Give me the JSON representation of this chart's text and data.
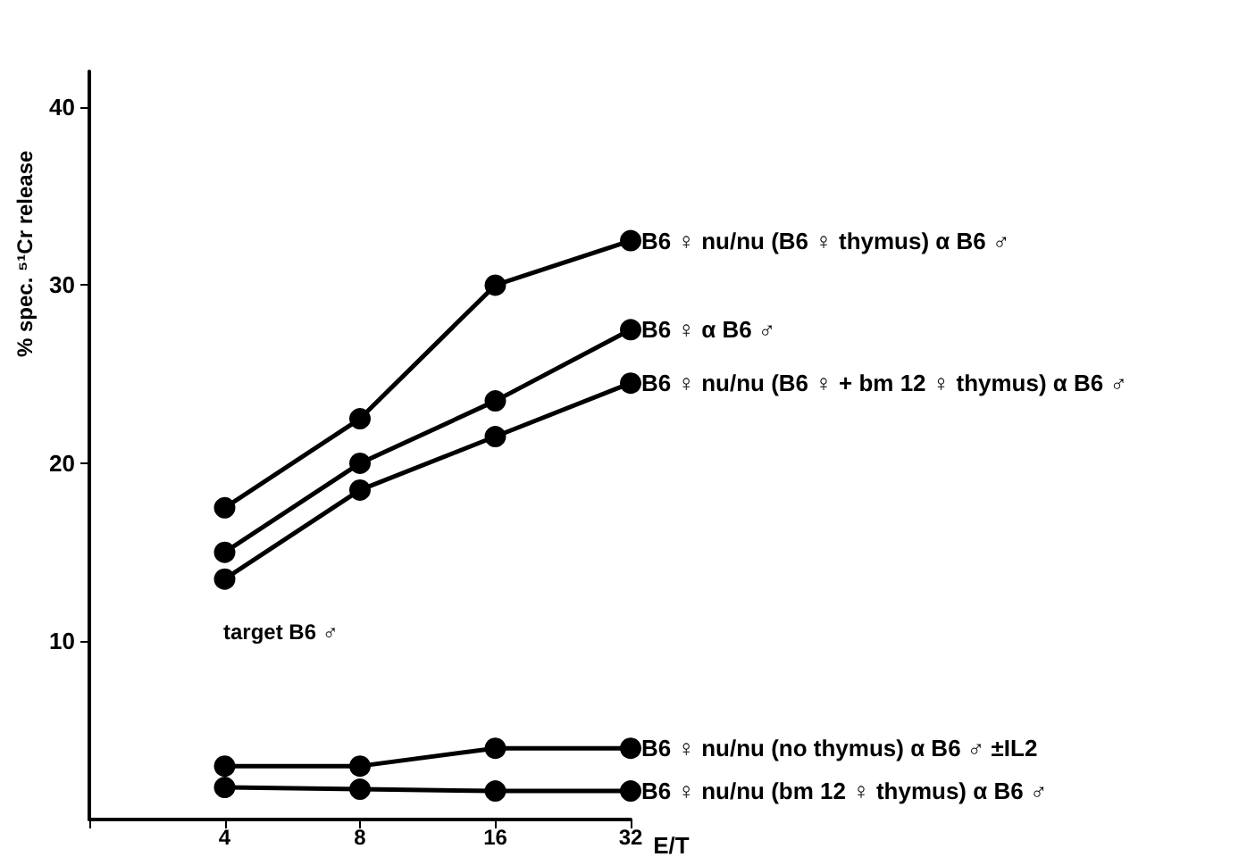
{
  "chart_data": {
    "type": "line",
    "xlabel": "E/T",
    "ylabel": "% spec. ⁵¹Cr release",
    "categories": [
      "4",
      "8",
      "16",
      "32"
    ],
    "series": [
      {
        "name": "B6 ♀ nu/nu (B6 ♀ thymus) α B6 ♂",
        "color": "#000000",
        "values": [
          17.5,
          22.5,
          30,
          32.5
        ]
      },
      {
        "name": "B6 ♀ α B6 ♂",
        "color": "#000000",
        "values": [
          15,
          20,
          23.5,
          27.5
        ]
      },
      {
        "name": "B6 ♀ nu/nu (B6 ♀ + bm 12 ♀ thymus) α B6 ♂",
        "color": "#000000",
        "values": [
          13.5,
          18.5,
          21.5,
          24.5
        ]
      },
      {
        "name": "B6 ♀ nu/nu (no thymus) α B6 ♂ ±IL2",
        "color": "#000000",
        "values": [
          3,
          3,
          4,
          4
        ]
      },
      {
        "name": "B6 ♀ nu/nu (bm 12 ♀ thymus) α B6 ♂",
        "color": "#000000",
        "values": [
          1.8,
          1.7,
          1.6,
          1.6
        ]
      }
    ],
    "ylim": [
      0,
      42
    ],
    "yticks": [
      10,
      20,
      30,
      40
    ],
    "annotations": [
      "target B6 ♂"
    ],
    "marker": "circle",
    "line_style": "solid",
    "grid": false,
    "legend": false
  }
}
